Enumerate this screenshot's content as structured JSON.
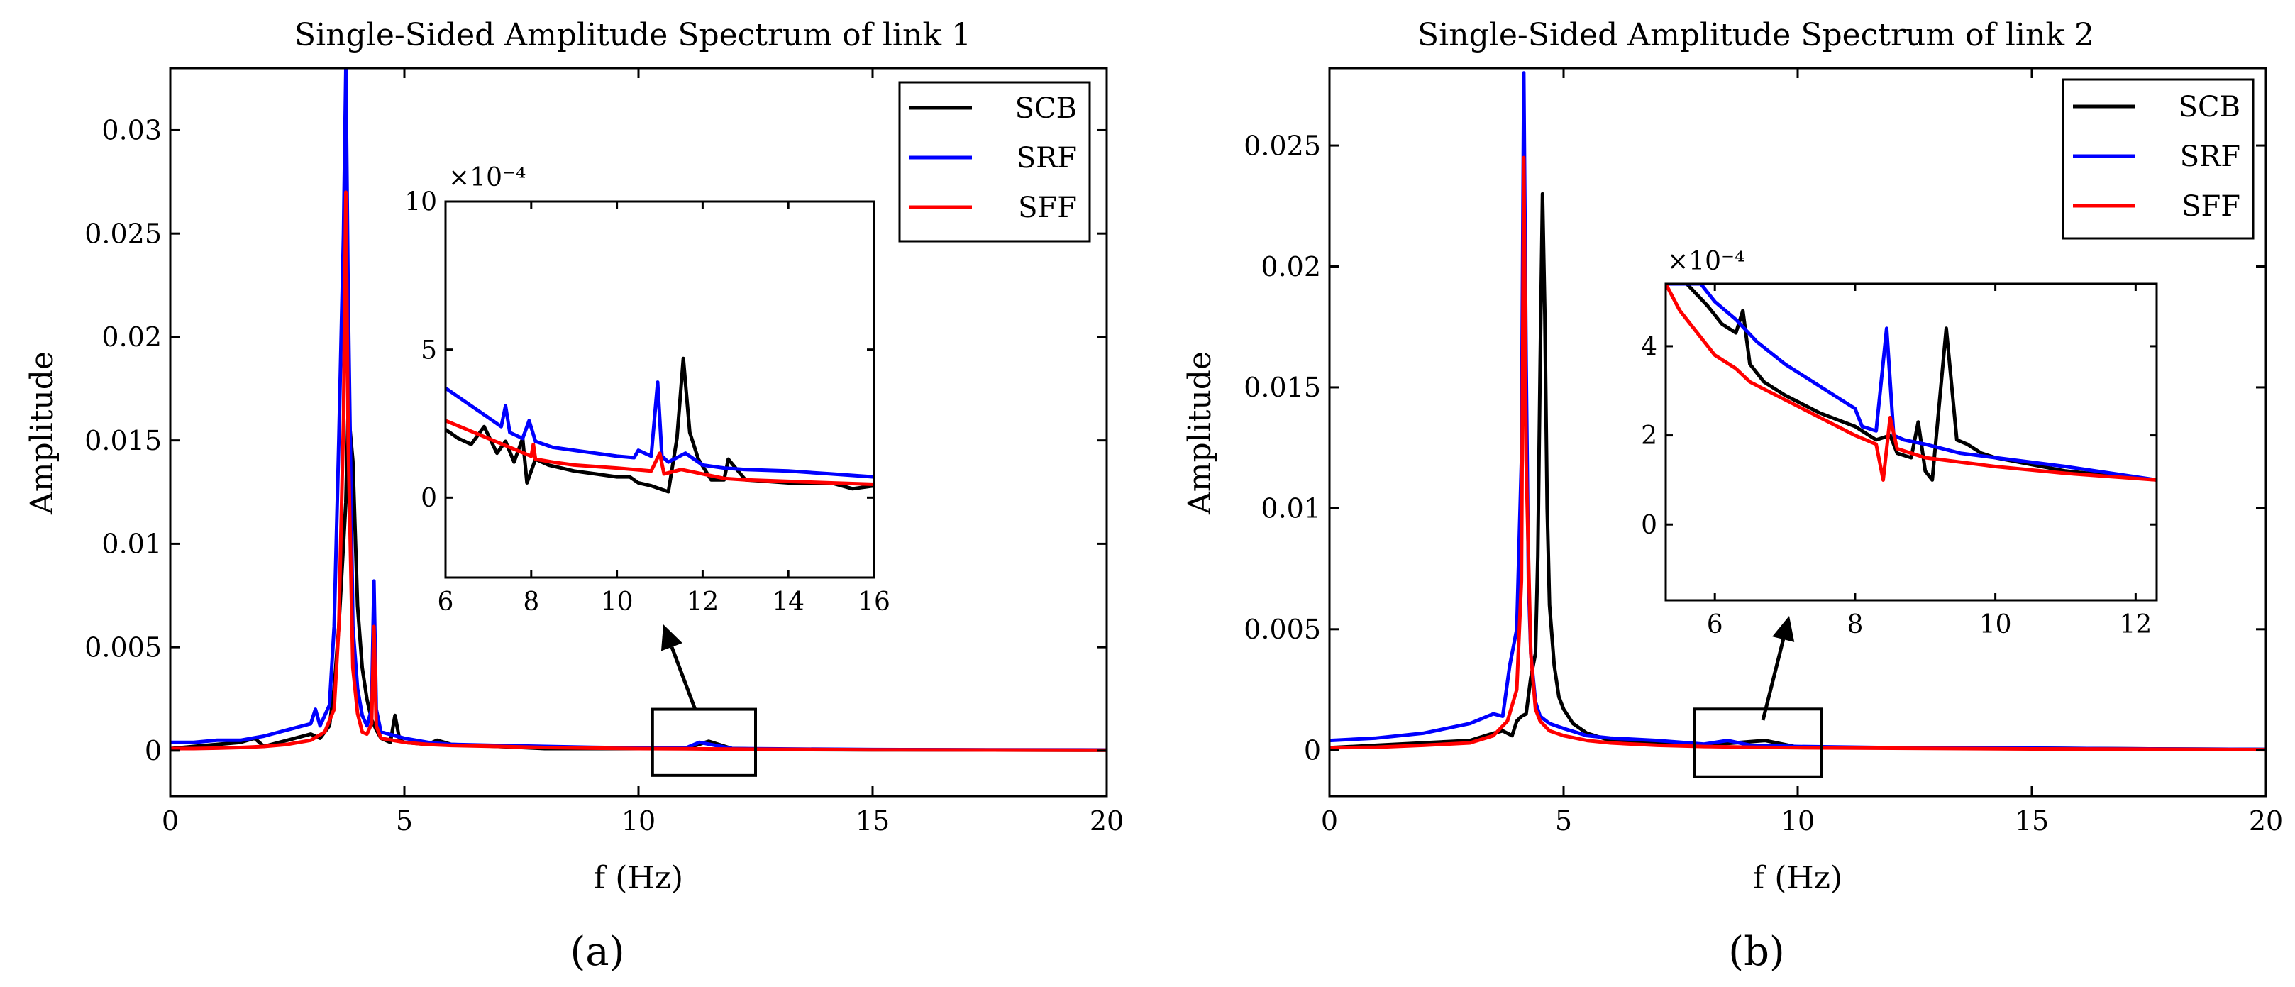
{
  "colors": {
    "SCB": "#000000",
    "SRF": "#0000ff",
    "SFF": "#ff0000"
  },
  "chart_data": [
    {
      "type": "line",
      "panel_label": "(a)",
      "title": "Single-Sided Amplitude Spectrum of link 1",
      "xlabel": "f (Hz)",
      "ylabel": "Amplitude",
      "xlim": [
        0,
        20
      ],
      "ylim": [
        -0.0022,
        0.033
      ],
      "xticks": [
        0,
        5,
        10,
        15,
        20
      ],
      "xtick_labels": [
        "0",
        "5",
        "10",
        "15",
        "20"
      ],
      "yticks": [
        0,
        0.005,
        0.01,
        0.015,
        0.02,
        0.025,
        0.03
      ],
      "ytick_labels": [
        "0",
        "0.005",
        "0.01",
        "0.015",
        "0.02",
        "0.025",
        "0.03"
      ],
      "grid": false,
      "legend": {
        "position": "top-right",
        "entries": [
          "SCB",
          "SRF",
          "SFF"
        ]
      },
      "series": [
        {
          "name": "SCB",
          "color": "#000000",
          "x": [
            0,
            0.5,
            1.0,
            1.5,
            1.8,
            2.0,
            2.5,
            3.0,
            3.2,
            3.4,
            3.5,
            3.6,
            3.7,
            3.75,
            3.8,
            3.9,
            4.0,
            4.1,
            4.2,
            4.3,
            4.4,
            4.5,
            4.7,
            4.8,
            4.9,
            5.0,
            5.5,
            5.7,
            6.0,
            7.0,
            8.0,
            9.0,
            10.0,
            11.0,
            11.5,
            12.0,
            13.0,
            15.0,
            17.5,
            20.0
          ],
          "y": [
            0.0001,
            0.0002,
            0.0003,
            0.0004,
            0.0006,
            0.0002,
            0.0005,
            0.0008,
            0.0006,
            0.0012,
            0.003,
            0.006,
            0.01,
            0.012,
            0.0165,
            0.014,
            0.007,
            0.004,
            0.0025,
            0.0015,
            0.001,
            0.0006,
            0.0004,
            0.0017,
            0.0005,
            0.0004,
            0.0003,
            0.0005,
            0.0003,
            0.0002,
            0.0001,
            0.0001,
            0.0001,
            0.0001,
            0.00045,
            0.0001,
            5e-05,
            4e-05,
            3e-05,
            2e-05
          ]
        },
        {
          "name": "SRF",
          "color": "#0000ff",
          "x": [
            0,
            0.5,
            1.0,
            1.5,
            2.0,
            2.5,
            3.0,
            3.1,
            3.2,
            3.4,
            3.5,
            3.6,
            3.7,
            3.75,
            3.8,
            3.9,
            4.0,
            4.1,
            4.2,
            4.3,
            4.35,
            4.4,
            4.5,
            5.0,
            5.5,
            6.0,
            7.0,
            8.0,
            9.0,
            10.0,
            11.0,
            11.3,
            12.0,
            13.0,
            15.0,
            17.5,
            20.0
          ],
          "y": [
            0.0004,
            0.0004,
            0.0005,
            0.0005,
            0.0007,
            0.001,
            0.0013,
            0.002,
            0.0012,
            0.0022,
            0.006,
            0.015,
            0.025,
            0.033,
            0.022,
            0.006,
            0.003,
            0.0017,
            0.0012,
            0.002,
            0.0082,
            0.002,
            0.0009,
            0.0006,
            0.0004,
            0.0003,
            0.00025,
            0.0002,
            0.00016,
            0.00013,
            0.00012,
            0.0004,
            0.0001,
            8e-05,
            5e-05,
            4e-05,
            3e-05
          ]
        },
        {
          "name": "SFF",
          "color": "#ff0000",
          "x": [
            0,
            0.5,
            1.0,
            1.5,
            2.0,
            2.5,
            3.0,
            3.3,
            3.5,
            3.6,
            3.7,
            3.75,
            3.8,
            3.9,
            4.0,
            4.1,
            4.2,
            4.3,
            4.35,
            4.4,
            4.5,
            5.0,
            5.5,
            6.0,
            7.0,
            8.0,
            9.0,
            10.0,
            11.0,
            12.0,
            13.0,
            15.0,
            17.5,
            20.0
          ],
          "y": [
            0.0001,
            0.0001,
            0.00012,
            0.00015,
            0.0002,
            0.0003,
            0.0005,
            0.0009,
            0.002,
            0.006,
            0.016,
            0.027,
            0.015,
            0.004,
            0.0018,
            0.0009,
            0.0008,
            0.0013,
            0.006,
            0.0012,
            0.0006,
            0.0004,
            0.0003,
            0.00025,
            0.0002,
            0.00015,
            0.00012,
            0.0001,
            9e-05,
            7e-05,
            6e-05,
            4e-05,
            3e-05,
            2e-05
          ]
        }
      ],
      "inset": {
        "exponent_label": "×10⁻⁴",
        "xlim": [
          6,
          16
        ],
        "ylim": [
          -2.7,
          10
        ],
        "xticks": [
          6,
          8,
          10,
          12,
          14,
          16
        ],
        "xtick_labels": [
          "6",
          "8",
          "10",
          "12",
          "14",
          "16"
        ],
        "yticks": [
          0,
          5,
          10
        ],
        "ytick_labels": [
          "0",
          "5",
          "10"
        ],
        "zoom_box": {
          "x": [
            10.3,
            12.5
          ],
          "y": [
            -0.0012,
            0.002
          ]
        },
        "series": [
          {
            "name": "SCB",
            "color": "#000000",
            "x": [
              6,
              6.3,
              6.6,
              6.9,
              7.2,
              7.4,
              7.6,
              7.8,
              7.9,
              8.1,
              8.4,
              8.7,
              9.0,
              9.5,
              10.0,
              10.3,
              10.5,
              10.8,
              11.0,
              11.2,
              11.4,
              11.55,
              11.7,
              11.9,
              12.2,
              12.5,
              12.6,
              13.0,
              14.0,
              15.0,
              15.5,
              16.0
            ],
            "y": [
              2.3,
              2.0,
              1.8,
              2.4,
              1.5,
              1.9,
              1.2,
              2.0,
              0.5,
              1.3,
              1.1,
              1.0,
              0.9,
              0.8,
              0.7,
              0.7,
              0.5,
              0.4,
              0.3,
              0.2,
              2.0,
              4.7,
              2.2,
              1.3,
              0.6,
              0.6,
              1.3,
              0.6,
              0.5,
              0.5,
              0.3,
              0.4
            ]
          },
          {
            "name": "SRF",
            "color": "#0000ff",
            "x": [
              6,
              6.5,
              7.0,
              7.3,
              7.4,
              7.5,
              7.8,
              7.95,
              8.1,
              8.5,
              9.0,
              9.5,
              10.0,
              10.4,
              10.5,
              10.8,
              10.95,
              11.05,
              11.2,
              11.6,
              12.0,
              12.5,
              13.0,
              14.0,
              15.0,
              16.0
            ],
            "y": [
              3.7,
              3.2,
              2.7,
              2.4,
              3.1,
              2.2,
              2.0,
              2.6,
              1.9,
              1.7,
              1.6,
              1.5,
              1.4,
              1.35,
              1.6,
              1.4,
              3.9,
              1.4,
              1.2,
              1.5,
              1.1,
              1.0,
              0.95,
              0.9,
              0.8,
              0.7
            ]
          },
          {
            "name": "SFF",
            "color": "#ff0000",
            "x": [
              6,
              6.5,
              7.0,
              7.5,
              8.0,
              8.05,
              8.1,
              8.5,
              9.0,
              10.0,
              10.8,
              11.0,
              11.1,
              11.5,
              12.0,
              12.5,
              13.0,
              14.0,
              15.0,
              16.0
            ],
            "y": [
              2.6,
              2.3,
              2.0,
              1.7,
              1.4,
              1.8,
              1.3,
              1.2,
              1.1,
              1.0,
              0.9,
              1.5,
              0.8,
              0.95,
              0.8,
              0.65,
              0.6,
              0.55,
              0.5,
              0.45
            ]
          }
        ]
      }
    },
    {
      "type": "line",
      "panel_label": "(b)",
      "title": "Single-Sided Amplitude Spectrum of link 2",
      "xlabel": "f (Hz)",
      "ylabel": "Amplitude",
      "xlim": [
        0,
        20
      ],
      "ylim": [
        -0.0019,
        0.0282
      ],
      "xticks": [
        0,
        5,
        10,
        15,
        20
      ],
      "xtick_labels": [
        "0",
        "5",
        "10",
        "15",
        "20"
      ],
      "yticks": [
        0,
        0.005,
        0.01,
        0.015,
        0.02,
        0.025
      ],
      "ytick_labels": [
        "0",
        "0.005",
        "0.01",
        "0.015",
        "0.02",
        "0.025"
      ],
      "grid": false,
      "legend": {
        "position": "top-right",
        "entries": [
          "SCB",
          "SRF",
          "SFF"
        ]
      },
      "series": [
        {
          "name": "SCB",
          "color": "#000000",
          "x": [
            0,
            1.0,
            2.0,
            3.0,
            3.5,
            3.7,
            3.9,
            4.0,
            4.1,
            4.2,
            4.3,
            4.4,
            4.45,
            4.5,
            4.55,
            4.6,
            4.65,
            4.7,
            4.8,
            4.9,
            5.0,
            5.2,
            5.5,
            6.0,
            7.0,
            8.0,
            9.3,
            10.0,
            12.0,
            15.0,
            17.5,
            20.0
          ],
          "y": [
            0.0001,
            0.0002,
            0.0003,
            0.0004,
            0.0007,
            0.0008,
            0.0006,
            0.0012,
            0.0014,
            0.0015,
            0.003,
            0.004,
            0.008,
            0.016,
            0.023,
            0.018,
            0.01,
            0.006,
            0.0035,
            0.0022,
            0.0017,
            0.0011,
            0.0007,
            0.0004,
            0.0003,
            0.0002,
            0.0004,
            0.00012,
            0.0001,
            8e-05,
            5e-05,
            3e-05
          ]
        },
        {
          "name": "SRF",
          "color": "#0000ff",
          "x": [
            0,
            1.0,
            2.0,
            3.0,
            3.5,
            3.7,
            3.85,
            4.0,
            4.1,
            4.15,
            4.2,
            4.25,
            4.3,
            4.4,
            4.5,
            4.7,
            5.0,
            5.5,
            6.0,
            7.0,
            8.0,
            8.5,
            9.0,
            10.0,
            12.0,
            15.0,
            17.5,
            20.0
          ],
          "y": [
            0.0004,
            0.0005,
            0.0007,
            0.0011,
            0.0015,
            0.0014,
            0.0035,
            0.005,
            0.012,
            0.028,
            0.016,
            0.007,
            0.004,
            0.002,
            0.0014,
            0.0011,
            0.0009,
            0.0006,
            0.0005,
            0.0004,
            0.00025,
            0.0004,
            0.0002,
            0.00015,
            0.0001,
            8e-05,
            5e-05,
            3e-05
          ]
        },
        {
          "name": "SFF",
          "color": "#ff0000",
          "x": [
            0,
            1.0,
            2.0,
            3.0,
            3.5,
            3.8,
            4.0,
            4.1,
            4.15,
            4.2,
            4.3,
            4.4,
            4.5,
            4.7,
            5.0,
            5.5,
            6.0,
            7.0,
            8.0,
            9.0,
            10.0,
            12.0,
            15.0,
            17.5,
            20.0
          ],
          "y": [
            0.0001,
            0.00012,
            0.0002,
            0.0003,
            0.0006,
            0.0012,
            0.0025,
            0.007,
            0.0245,
            0.012,
            0.004,
            0.0017,
            0.0012,
            0.0008,
            0.0006,
            0.0004,
            0.0003,
            0.0002,
            0.00015,
            0.00012,
            0.0001,
            8e-05,
            5e-05,
            4e-05,
            2e-05
          ]
        }
      ],
      "inset": {
        "exponent_label": "×10⁻⁴",
        "xlim": [
          5.3,
          12.3
        ],
        "ylim": [
          -1.7,
          5.4
        ],
        "xticks": [
          6,
          8,
          10,
          12
        ],
        "xtick_labels": [
          "6",
          "8",
          "10",
          "12"
        ],
        "yticks": [
          0,
          2,
          4
        ],
        "ytick_labels": [
          "0",
          "2",
          "4"
        ],
        "zoom_box": {
          "x": [
            7.8,
            10.5
          ],
          "y": [
            -0.0011,
            0.0017
          ]
        },
        "series": [
          {
            "name": "SCB",
            "color": "#000000",
            "x": [
              5.3,
              5.6,
              5.9,
              6.1,
              6.3,
              6.4,
              6.5,
              6.7,
              7.0,
              7.5,
              8.0,
              8.3,
              8.5,
              8.6,
              8.8,
              8.9,
              9.0,
              9.1,
              9.3,
              9.45,
              9.6,
              9.8,
              10.0,
              10.5,
              11.0,
              12.3
            ],
            "y": [
              5.4,
              5.4,
              4.9,
              4.5,
              4.3,
              4.8,
              3.6,
              3.2,
              2.9,
              2.5,
              2.2,
              1.9,
              2.0,
              1.6,
              1.5,
              2.3,
              1.2,
              1.0,
              4.4,
              1.9,
              1.8,
              1.6,
              1.5,
              1.35,
              1.2,
              1.0
            ]
          },
          {
            "name": "SRF",
            "color": "#0000ff",
            "x": [
              5.3,
              5.6,
              5.8,
              6.0,
              6.3,
              6.6,
              7.0,
              7.5,
              7.8,
              8.0,
              8.1,
              8.3,
              8.45,
              8.55,
              8.7,
              9.0,
              9.5,
              10.0,
              11.0,
              12.3
            ],
            "y": [
              5.4,
              5.4,
              5.4,
              5.0,
              4.6,
              4.1,
              3.6,
              3.1,
              2.8,
              2.6,
              2.2,
              2.1,
              4.4,
              2.0,
              1.9,
              1.8,
              1.6,
              1.5,
              1.3,
              1.0
            ]
          },
          {
            "name": "SFF",
            "color": "#ff0000",
            "x": [
              5.3,
              5.5,
              5.8,
              6.0,
              6.3,
              6.5,
              7.0,
              7.5,
              8.0,
              8.3,
              8.4,
              8.5,
              8.6,
              9.0,
              10.0,
              11.0,
              12.3
            ],
            "y": [
              5.4,
              4.8,
              4.2,
              3.8,
              3.5,
              3.2,
              2.8,
              2.4,
              2.0,
              1.8,
              1.0,
              2.4,
              1.7,
              1.5,
              1.3,
              1.15,
              1.0
            ]
          }
        ]
      }
    }
  ]
}
